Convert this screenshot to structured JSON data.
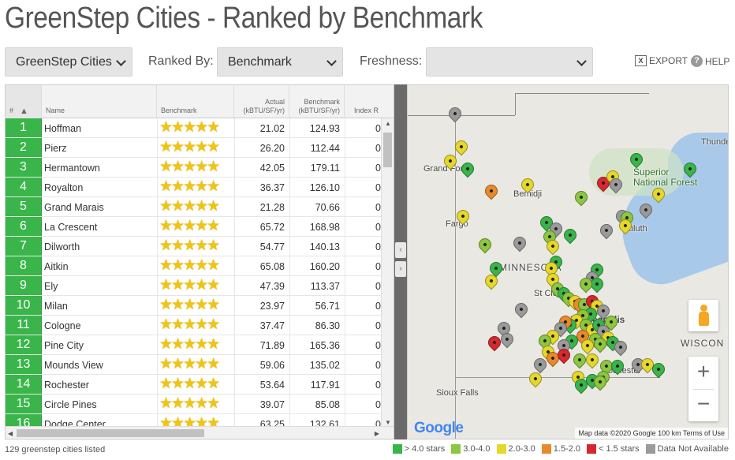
{
  "page_title": "GreenStep Cities - Ranked by Benchmark",
  "toolbar": {
    "dataset_value": "GreenStep Cities",
    "ranked_by_label": "Ranked By:",
    "ranked_by_value": "Benchmark",
    "freshness_label": "Freshness:",
    "freshness_value": "",
    "export_label": "EXPORT",
    "help_label": "HELP"
  },
  "table": {
    "columns": {
      "rank": "#",
      "name": "Name",
      "benchmark": "Benchmark",
      "actual": "Actual\n(kBTU/SF/yr)",
      "benchmark_value": "Benchmark\n(kBTU/SF/yr)",
      "index": "Index R"
    },
    "rows": [
      {
        "rank": "1",
        "name": "Hoffman",
        "stars": "★★★★★",
        "actual": "21.02",
        "benchmark": "124.93",
        "index": "0"
      },
      {
        "rank": "2",
        "name": "Pierz",
        "stars": "★★★★★",
        "actual": "26.20",
        "benchmark": "112.44",
        "index": "0"
      },
      {
        "rank": "3",
        "name": "Hermantown",
        "stars": "★★★★★",
        "actual": "42.05",
        "benchmark": "179.11",
        "index": "0"
      },
      {
        "rank": "4",
        "name": "Royalton",
        "stars": "★★★★★",
        "actual": "36.37",
        "benchmark": "126.10",
        "index": "0"
      },
      {
        "rank": "5",
        "name": "Grand Marais",
        "stars": "★★★★★",
        "actual": "21.28",
        "benchmark": "70.66",
        "index": "0"
      },
      {
        "rank": "6",
        "name": "La Crescent",
        "stars": "★★★★★",
        "actual": "65.72",
        "benchmark": "168.98",
        "index": "0"
      },
      {
        "rank": "7",
        "name": "Dilworth",
        "stars": "★★★★★",
        "actual": "54.77",
        "benchmark": "140.13",
        "index": "0"
      },
      {
        "rank": "8",
        "name": "Aitkin",
        "stars": "★★★★★",
        "actual": "65.08",
        "benchmark": "160.20",
        "index": "0"
      },
      {
        "rank": "9",
        "name": "Ely",
        "stars": "★★★★★",
        "actual": "47.39",
        "benchmark": "113.37",
        "index": "0"
      },
      {
        "rank": "10",
        "name": "Milan",
        "stars": "★★★★★",
        "actual": "23.97",
        "benchmark": "56.71",
        "index": "0"
      },
      {
        "rank": "11",
        "name": "Cologne",
        "stars": "★★★★★",
        "actual": "37.47",
        "benchmark": "86.30",
        "index": "0"
      },
      {
        "rank": "12",
        "name": "Pine City",
        "stars": "★★★★★",
        "actual": "71.89",
        "benchmark": "165.36",
        "index": "0"
      },
      {
        "rank": "13",
        "name": "Mounds View",
        "stars": "★★★★★",
        "actual": "59.06",
        "benchmark": "135.02",
        "index": "0"
      },
      {
        "rank": "14",
        "name": "Rochester",
        "stars": "★★★★★",
        "actual": "53.64",
        "benchmark": "117.91",
        "index": "0"
      },
      {
        "rank": "15",
        "name": "Circle Pines",
        "stars": "★★★★★",
        "actual": "39.07",
        "benchmark": "85.08",
        "index": "0"
      },
      {
        "rank": "16",
        "name": "Dodge Center",
        "stars": "★★★★★",
        "actual": "63.25",
        "benchmark": "132.61",
        "index": "0"
      }
    ]
  },
  "map": {
    "labels": {
      "superior": "Superior\nNational Forest",
      "thunder": "Thunde",
      "grand_forks": "Grand Forks",
      "bemidji": "Bemidji",
      "duluth": "Duluth",
      "fargo": "Fargo",
      "minnesota": "MINNESOTA",
      "st_cloud": "St Cloud",
      "minneapolis": "Minneapolis",
      "wisconsin": "WISCON",
      "rochester": "Rochester",
      "sioux_falls": "Sioux Falls"
    },
    "google_logo": "Google",
    "attribution": "Map data ©2020 Google   100 km   Terms of Use"
  },
  "footer": {
    "count_text": "129 greenstep cities listed"
  },
  "legend": [
    {
      "label": "> 4.0 stars",
      "color": "#39b54a"
    },
    {
      "label": "3.0-4.0",
      "color": "#8dc63f"
    },
    {
      "label": "2.0-3.0",
      "color": "#e5d82a"
    },
    {
      "label": "1.5-2.0",
      "color": "#e88a2c"
    },
    {
      "label": "< 1.5 stars",
      "color": "#d9272e"
    },
    {
      "label": "Data Not Available",
      "color": "#9a9a9a"
    }
  ]
}
